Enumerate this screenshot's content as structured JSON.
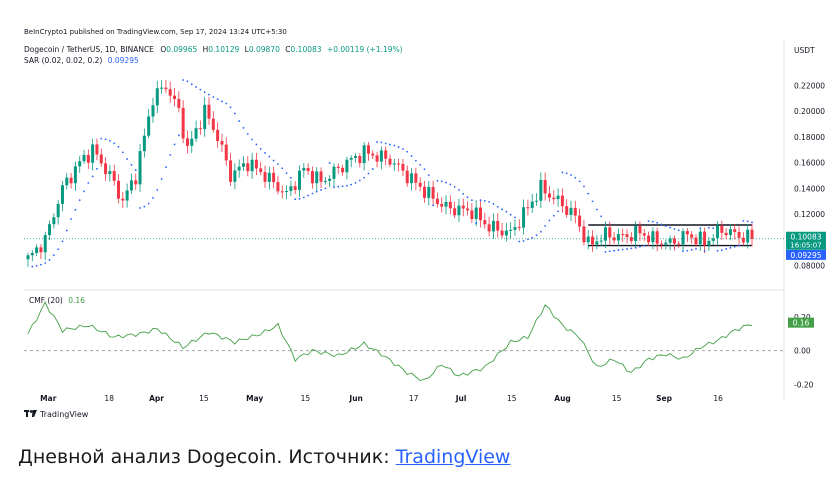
{
  "header": {
    "published": "BeInCrypto1 published on TradingView.com, Sep 17, 2024 13:24 UTC+5:30",
    "symbol": "Dogecoin / TetherUS, 1D, BINANCE",
    "ohlc_o_label": "O",
    "ohlc_o": "0.09965",
    "ohlc_h_label": "H",
    "ohlc_h": "0.10129",
    "ohlc_l_label": "L",
    "ohlc_l": "0.09870",
    "ohlc_c_label": "C",
    "ohlc_c": "0.10083",
    "change": "+0.00119 (+1.19%)",
    "sar_label": "SAR (0.02, 0.02, 0.2)",
    "sar_value": "0.09295"
  },
  "currency_badge": "USDT",
  "price_badge": {
    "price": "0.10083",
    "countdown": "16:05:07"
  },
  "sar_badge": "0.09295",
  "cmf": {
    "label": "CMF (20)",
    "value": "0.16"
  },
  "footer": {
    "logo_text": "TradingView"
  },
  "caption": {
    "text": "Дневной анализ Dogecoin. Источник: ",
    "link": "TradingView"
  },
  "colors": {
    "up": "#089981",
    "down": "#f23645",
    "sar": "#2962ff",
    "cmf": "#43a047",
    "price_line": "#089981"
  },
  "chart_data": [
    {
      "type": "candlestick",
      "title": "Dogecoin / TetherUS, 1D, BINANCE",
      "y_ticks": [
        "0.22000",
        "0.20000",
        "0.18000",
        "0.16000",
        "0.14000",
        "0.12000",
        "0.08000"
      ],
      "ylim": [
        0.075,
        0.235
      ],
      "x_tick_labels": [
        "Mar",
        "18",
        "Apr",
        "15",
        "May",
        "15",
        "Jun",
        "17",
        "Jul",
        "15",
        "Aug",
        "15",
        "Sep",
        "16"
      ],
      "anchors": [
        {
          "d": 0,
          "p": 0.085
        },
        {
          "d": 4,
          "p": 0.1
        },
        {
          "d": 8,
          "p": 0.14
        },
        {
          "d": 12,
          "p": 0.16
        },
        {
          "d": 15,
          "p": 0.17
        },
        {
          "d": 19,
          "p": 0.15
        },
        {
          "d": 22,
          "p": 0.13
        },
        {
          "d": 25,
          "p": 0.15
        },
        {
          "d": 27,
          "p": 0.18
        },
        {
          "d": 29,
          "p": 0.21
        },
        {
          "d": 32,
          "p": 0.22
        },
        {
          "d": 35,
          "p": 0.2
        },
        {
          "d": 37,
          "p": 0.17
        },
        {
          "d": 41,
          "p": 0.2
        },
        {
          "d": 44,
          "p": 0.18
        },
        {
          "d": 47,
          "p": 0.15
        },
        {
          "d": 51,
          "p": 0.16
        },
        {
          "d": 55,
          "p": 0.15
        },
        {
          "d": 60,
          "p": 0.135
        },
        {
          "d": 64,
          "p": 0.155
        },
        {
          "d": 68,
          "p": 0.145
        },
        {
          "d": 74,
          "p": 0.16
        },
        {
          "d": 78,
          "p": 0.168
        },
        {
          "d": 84,
          "p": 0.162
        },
        {
          "d": 88,
          "p": 0.15
        },
        {
          "d": 93,
          "p": 0.135
        },
        {
          "d": 97,
          "p": 0.125
        },
        {
          "d": 103,
          "p": 0.122
        },
        {
          "d": 107,
          "p": 0.11
        },
        {
          "d": 112,
          "p": 0.105
        },
        {
          "d": 116,
          "p": 0.125
        },
        {
          "d": 119,
          "p": 0.14
        },
        {
          "d": 123,
          "p": 0.13
        },
        {
          "d": 127,
          "p": 0.118
        },
        {
          "d": 130,
          "p": 0.096
        },
        {
          "d": 134,
          "p": 0.104
        },
        {
          "d": 138,
          "p": 0.102
        },
        {
          "d": 142,
          "p": 0.106
        },
        {
          "d": 145,
          "p": 0.1
        },
        {
          "d": 149,
          "p": 0.097
        },
        {
          "d": 153,
          "p": 0.104
        },
        {
          "d": 157,
          "p": 0.098
        },
        {
          "d": 161,
          "p": 0.108
        },
        {
          "d": 165,
          "p": 0.103
        },
        {
          "d": 168,
          "p": 0.1008
        }
      ],
      "channel": {
        "upper": 0.1115,
        "lower": 0.0955,
        "from_day": 130,
        "to_day": 168
      },
      "current_price": 0.10083,
      "sar_value": 0.09295
    },
    {
      "type": "line",
      "title": "CMF (20)",
      "y_ticks": [
        "0.20",
        "0.00",
        "-0.20"
      ],
      "ylim": [
        -0.28,
        0.3
      ],
      "anchors": [
        {
          "d": 0,
          "v": 0.1
        },
        {
          "d": 4,
          "v": 0.28
        },
        {
          "d": 8,
          "v": 0.12
        },
        {
          "d": 14,
          "v": 0.15
        },
        {
          "d": 20,
          "v": 0.08
        },
        {
          "d": 26,
          "v": 0.1
        },
        {
          "d": 30,
          "v": 0.13
        },
        {
          "d": 36,
          "v": 0.02
        },
        {
          "d": 42,
          "v": 0.11
        },
        {
          "d": 48,
          "v": 0.05
        },
        {
          "d": 54,
          "v": 0.1
        },
        {
          "d": 58,
          "v": 0.15
        },
        {
          "d": 62,
          "v": -0.05
        },
        {
          "d": 66,
          "v": 0.0
        },
        {
          "d": 72,
          "v": -0.03
        },
        {
          "d": 78,
          "v": 0.04
        },
        {
          "d": 82,
          "v": -0.02
        },
        {
          "d": 88,
          "v": -0.13
        },
        {
          "d": 92,
          "v": -0.18
        },
        {
          "d": 96,
          "v": -0.08
        },
        {
          "d": 100,
          "v": -0.15
        },
        {
          "d": 106,
          "v": -0.1
        },
        {
          "d": 112,
          "v": 0.05
        },
        {
          "d": 116,
          "v": 0.08
        },
        {
          "d": 120,
          "v": 0.27
        },
        {
          "d": 124,
          "v": 0.15
        },
        {
          "d": 128,
          "v": 0.08
        },
        {
          "d": 132,
          "v": -0.1
        },
        {
          "d": 136,
          "v": -0.05
        },
        {
          "d": 140,
          "v": -0.13
        },
        {
          "d": 144,
          "v": -0.05
        },
        {
          "d": 148,
          "v": -0.02
        },
        {
          "d": 152,
          "v": -0.05
        },
        {
          "d": 156,
          "v": 0.02
        },
        {
          "d": 160,
          "v": 0.06
        },
        {
          "d": 164,
          "v": 0.12
        },
        {
          "d": 168,
          "v": 0.16
        }
      ],
      "current_value": 0.16
    }
  ]
}
